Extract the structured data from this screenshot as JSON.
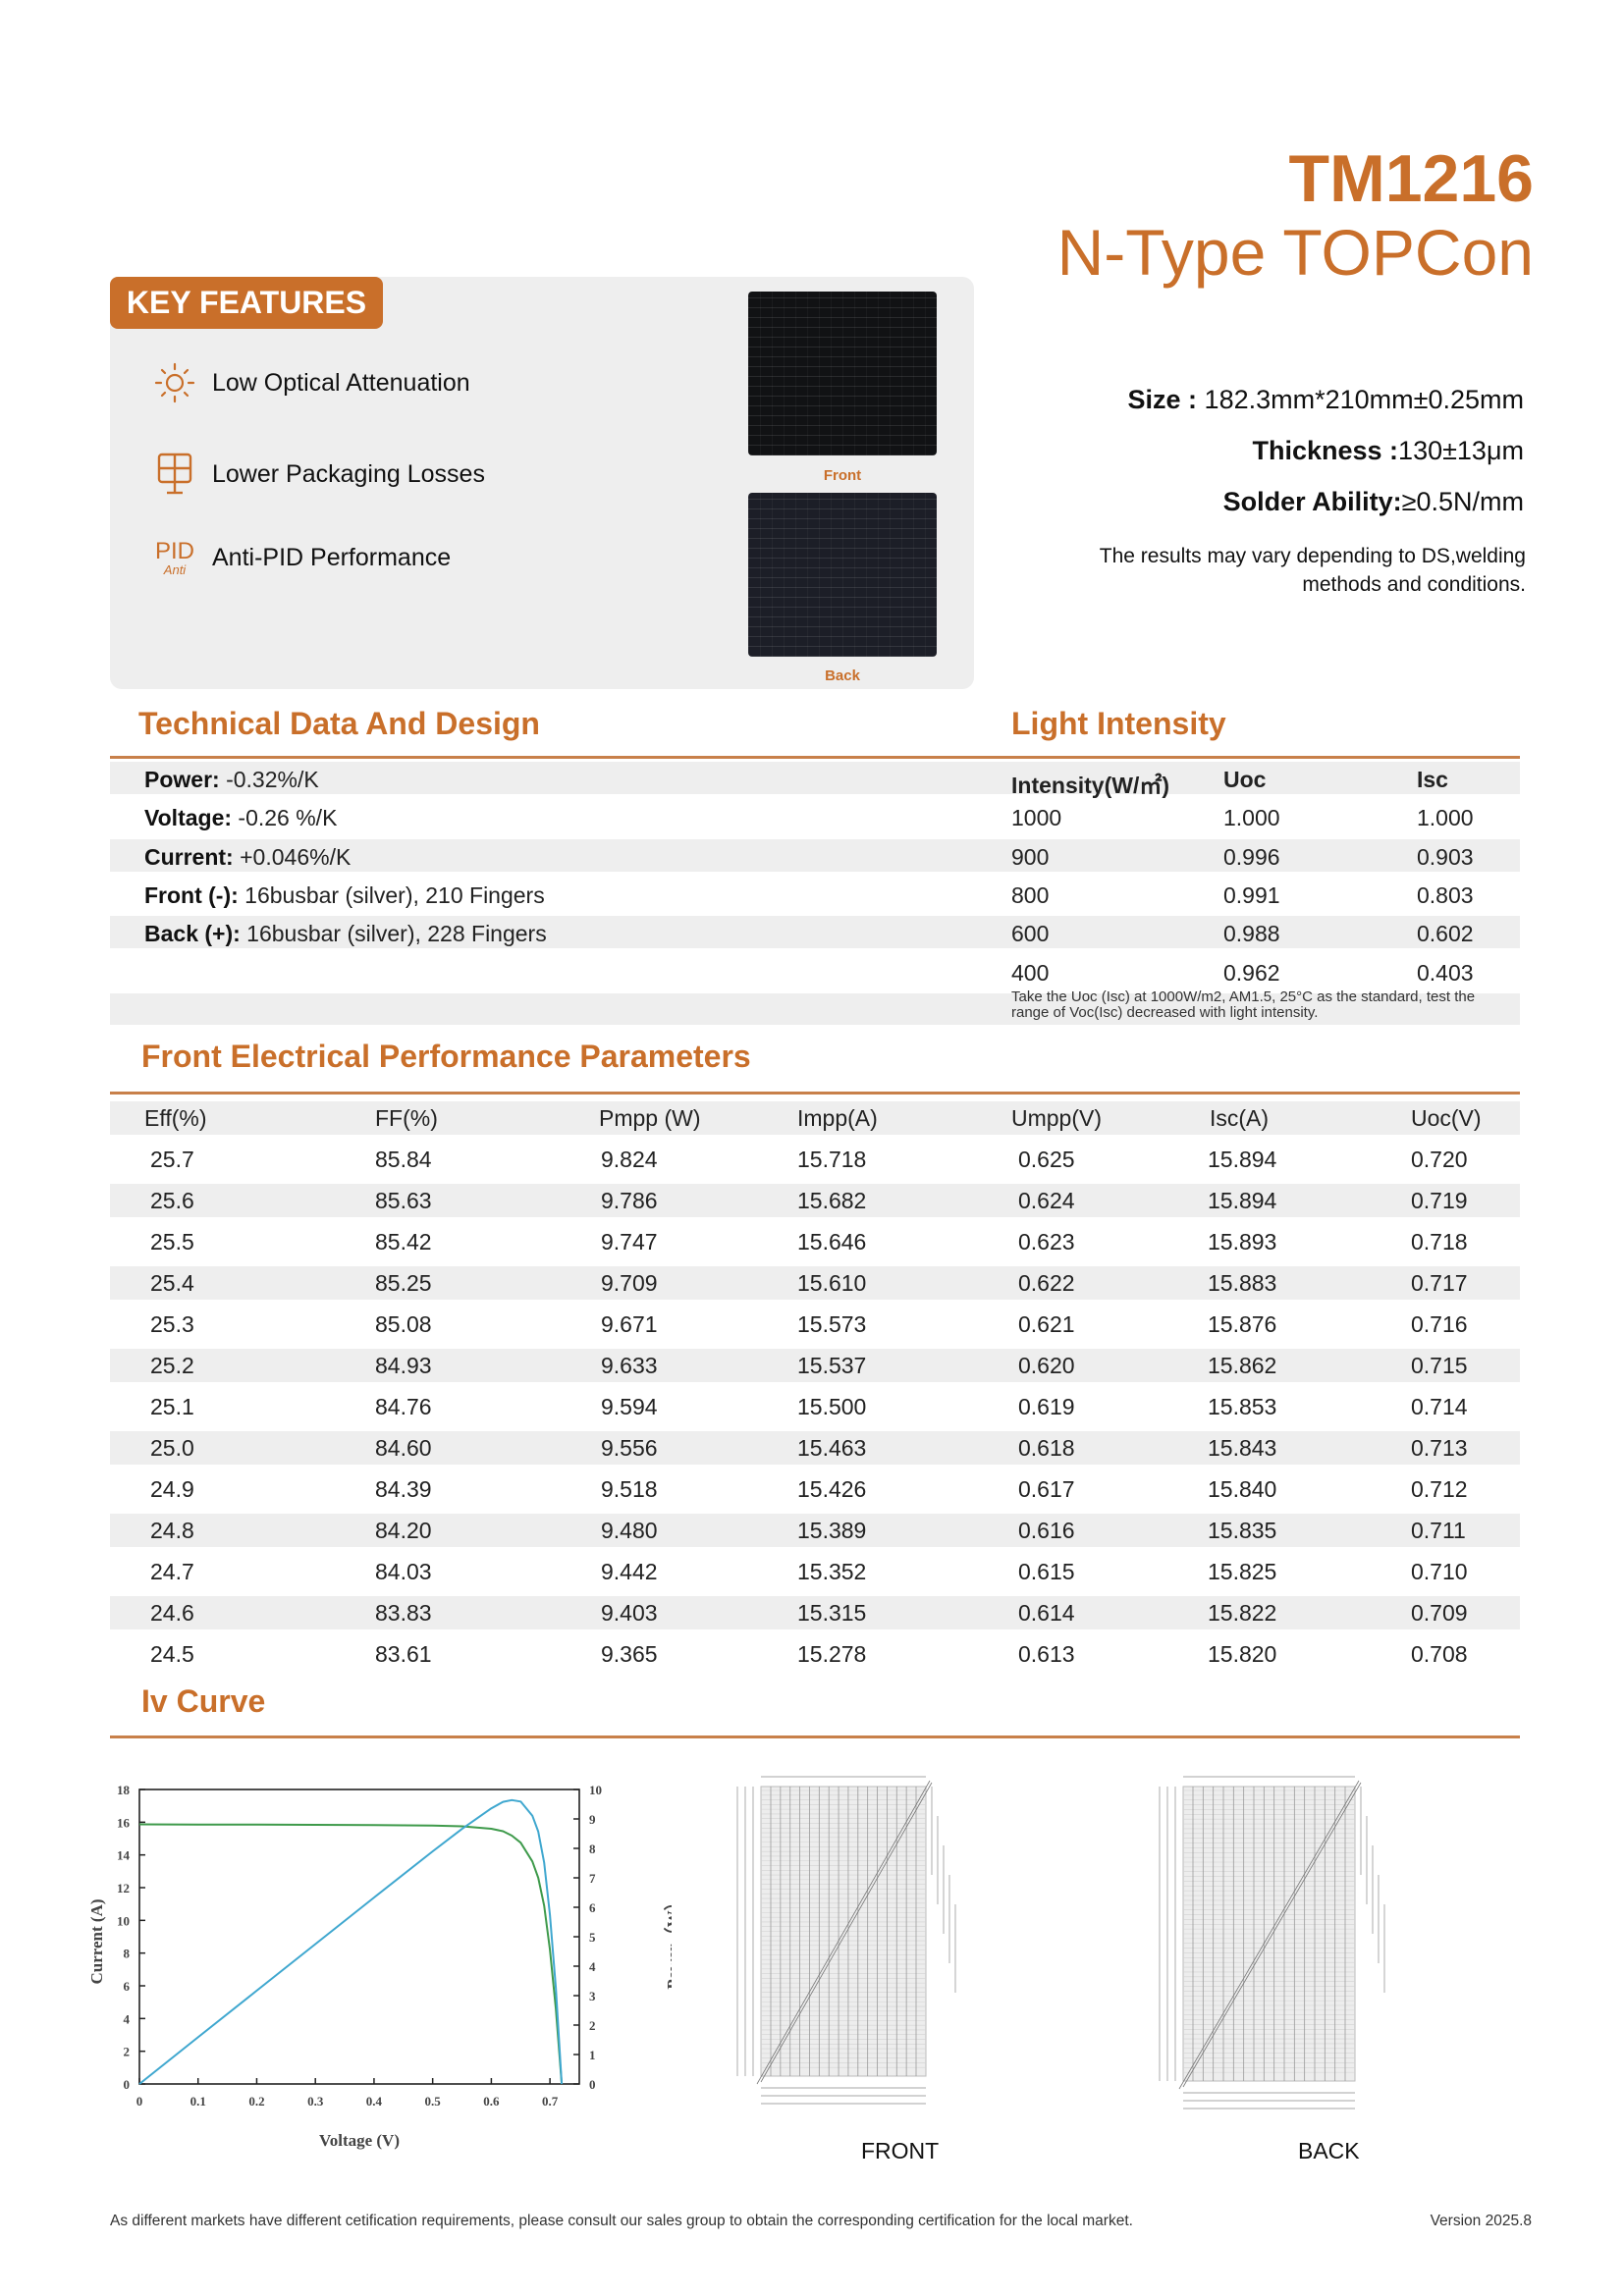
{
  "header": {
    "model": "TM1216",
    "type": "N-Type TOPCon"
  },
  "key_features": {
    "badge": "KEY FEATURES",
    "items": [
      {
        "icon": "sun-icon",
        "label": "Low Optical Attenuation"
      },
      {
        "icon": "solar-panel-icon",
        "label": "Lower Packaging Losses"
      },
      {
        "icon": "anti-pid-icon",
        "icon_text": "PID",
        "icon_subtext": "Anti",
        "label": "Anti-PID Performance"
      }
    ],
    "images": {
      "front_label": "Front",
      "back_label": "Back"
    }
  },
  "specs": {
    "size_label": "Size :",
    "size_value": " 182.3mm*210mm±0.25mm",
    "thickness_label": "Thickness :",
    "thickness_value": "130±13μm",
    "solder_label": "Solder Ability:",
    "solder_value": "≥0.5N/mm",
    "note_line1": "The results may vary depending to DS,welding",
    "note_line2": "methods and conditions."
  },
  "technical": {
    "title": "Technical Data And Design",
    "rows": [
      {
        "label": "Power:",
        "value": " -0.32%/K"
      },
      {
        "label": "Voltage:",
        "value": " -0.26 %/K"
      },
      {
        "label": "Current:",
        "value": " +0.046%/K"
      },
      {
        "label": "Front (-):",
        "value": " 16busbar (silver), 210 Fingers"
      },
      {
        "label": "Back (+):",
        "value": " 16busbar (silver), 228 Fingers"
      }
    ]
  },
  "light_intensity": {
    "title": "Light Intensity",
    "headers": [
      "Intensity(W/㎡)",
      "Uoc",
      "Isc"
    ],
    "rows": [
      [
        "1000",
        "1.000",
        "1.000"
      ],
      [
        "900",
        "0.996",
        "0.903"
      ],
      [
        "800",
        "0.991",
        "0.803"
      ],
      [
        "600",
        "0.988",
        "0.602"
      ],
      [
        "400",
        "0.962",
        "0.403"
      ]
    ],
    "note": "Take the Uoc (Isc) at 1000W/m2, AM1.5, 25°C as the standard, test the range of Voc(Isc) decreased with light intensity."
  },
  "performance": {
    "title": "Front Electrical Performance Parameters",
    "headers": [
      "Eff(%)",
      "FF(%)",
      "Pmpp (W)",
      "Impp(A)",
      "Umpp(V)",
      "Isc(A)",
      "Uoc(V)"
    ],
    "rows": [
      [
        "25.7",
        "85.84",
        "9.824",
        "15.718",
        "0.625",
        "15.894",
        "0.720"
      ],
      [
        "25.6",
        "85.63",
        "9.786",
        "15.682",
        "0.624",
        "15.894",
        "0.719"
      ],
      [
        "25.5",
        "85.42",
        "9.747",
        "15.646",
        "0.623",
        "15.893",
        "0.718"
      ],
      [
        "25.4",
        "85.25",
        "9.709",
        "15.610",
        "0.622",
        "15.883",
        "0.717"
      ],
      [
        "25.3",
        "85.08",
        "9.671",
        "15.573",
        "0.621",
        "15.876",
        "0.716"
      ],
      [
        "25.2",
        "84.93",
        "9.633",
        "15.537",
        "0.620",
        "15.862",
        "0.715"
      ],
      [
        "25.1",
        "84.76",
        "9.594",
        "15.500",
        "0.619",
        "15.853",
        "0.714"
      ],
      [
        "25.0",
        "84.60",
        "9.556",
        "15.463",
        "0.618",
        "15.843",
        "0.713"
      ],
      [
        "24.9",
        "84.39",
        "9.518",
        "15.426",
        "0.617",
        "15.840",
        "0.712"
      ],
      [
        "24.8",
        "84.20",
        "9.480",
        "15.389",
        "0.616",
        "15.835",
        "0.711"
      ],
      [
        "24.7",
        "84.03",
        "9.442",
        "15.352",
        "0.615",
        "15.825",
        "0.710"
      ],
      [
        "24.6",
        "83.83",
        "9.403",
        "15.315",
        "0.614",
        "15.822",
        "0.709"
      ],
      [
        "24.5",
        "83.61",
        "9.365",
        "15.278",
        "0.613",
        "15.820",
        "0.708"
      ]
    ]
  },
  "iv_curve": {
    "title": "Iv Curve",
    "front_label": "FRONT",
    "back_label": "BACK"
  },
  "chart_data": {
    "type": "line",
    "xlabel": "Voltage (V)",
    "ylabel": "Current (A)",
    "y2label": "Power（W）",
    "xlim": [
      0,
      0.75
    ],
    "ylim": [
      0,
      18
    ],
    "y2lim": [
      0,
      10
    ],
    "xticks": [
      "0",
      "0.1",
      "0.2",
      "0.3",
      "0.4",
      "0.5",
      "0.6",
      "0.7"
    ],
    "yticks": [
      "0",
      "2",
      "4",
      "6",
      "8",
      "10",
      "12",
      "14",
      "16",
      "18"
    ],
    "y2ticks": [
      "0",
      "1",
      "2",
      "3",
      "4",
      "5",
      "6",
      "7",
      "8",
      "9",
      "10"
    ],
    "grid": false,
    "x": [
      0,
      0.1,
      0.2,
      0.3,
      0.4,
      0.5,
      0.55,
      0.6,
      0.62,
      0.635,
      0.65,
      0.67,
      0.68,
      0.69,
      0.7,
      0.71,
      0.72
    ],
    "series": [
      {
        "axis": "left",
        "color": "#3E9A4B",
        "values": [
          15.87,
          15.86,
          15.85,
          15.84,
          15.83,
          15.8,
          15.75,
          15.6,
          15.45,
          15.18,
          14.75,
          13.6,
          12.6,
          10.9,
          8.2,
          4.6,
          0
        ]
      },
      {
        "axis": "right",
        "color": "#3FA7CF",
        "values": [
          0,
          1.586,
          3.17,
          4.75,
          6.33,
          7.9,
          8.66,
          9.36,
          9.58,
          9.64,
          9.59,
          9.11,
          8.57,
          7.52,
          5.74,
          3.27,
          0
        ]
      }
    ]
  },
  "footer": {
    "text": "As different markets have different cetification requirements, please consult our sales group to obtain the corresponding certification for the local market.",
    "version": "Version 2025.8"
  }
}
